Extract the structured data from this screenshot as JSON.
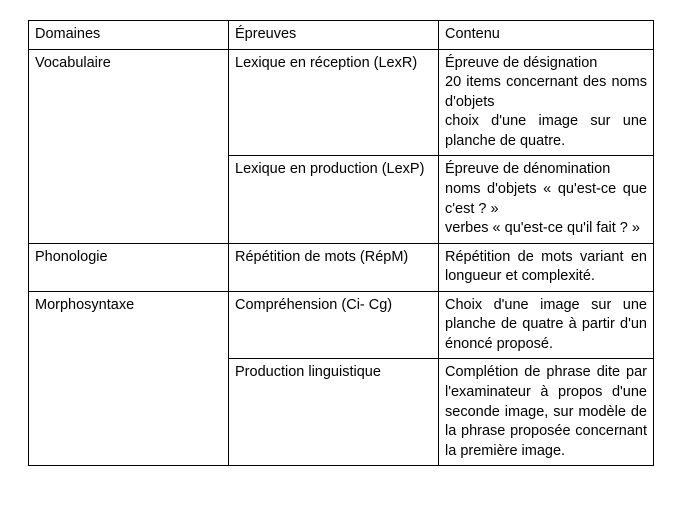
{
  "header": {
    "col1": "Domaines",
    "col2": "Épreuves",
    "col3": "Contenu"
  },
  "rows": {
    "vocab": {
      "domain": "Vocabulaire",
      "lexr": {
        "epreuve": "Lexique en réception (LexR)",
        "contenu": "Épreuve de désignation\n20 items concernant des noms d'objets\nchoix d'une image sur une planche de quatre."
      },
      "lexp": {
        "epreuve": "Lexique en production (LexP)",
        "contenu": "Épreuve de dénomination\nnoms d'objets « qu'est-ce que c'est ? »\nverbes « qu'est-ce qu'il fait ? »"
      }
    },
    "phono": {
      "domain": "Phonologie",
      "repm": {
        "epreuve": "Répétition de mots (RépM)",
        "contenu": "Répétition de mots variant en longueur et complexité."
      }
    },
    "morpho": {
      "domain": "Morphosyntaxe",
      "comp": {
        "epreuve": "Compréhension (Ci- Cg)",
        "contenu": "Choix d'une image sur une planche de quatre à partir d'un énoncé proposé."
      },
      "prod": {
        "epreuve": "Production linguistique",
        "contenu": "Complétion de phrase dite par l'examinateur à propos d'une seconde image, sur modèle de la phrase proposée concernant la première image."
      }
    }
  },
  "colors": {
    "border": "#000000",
    "background": "#ffffff",
    "text": "#000000"
  },
  "font": {
    "family": "Arial",
    "size_pt": 11
  }
}
